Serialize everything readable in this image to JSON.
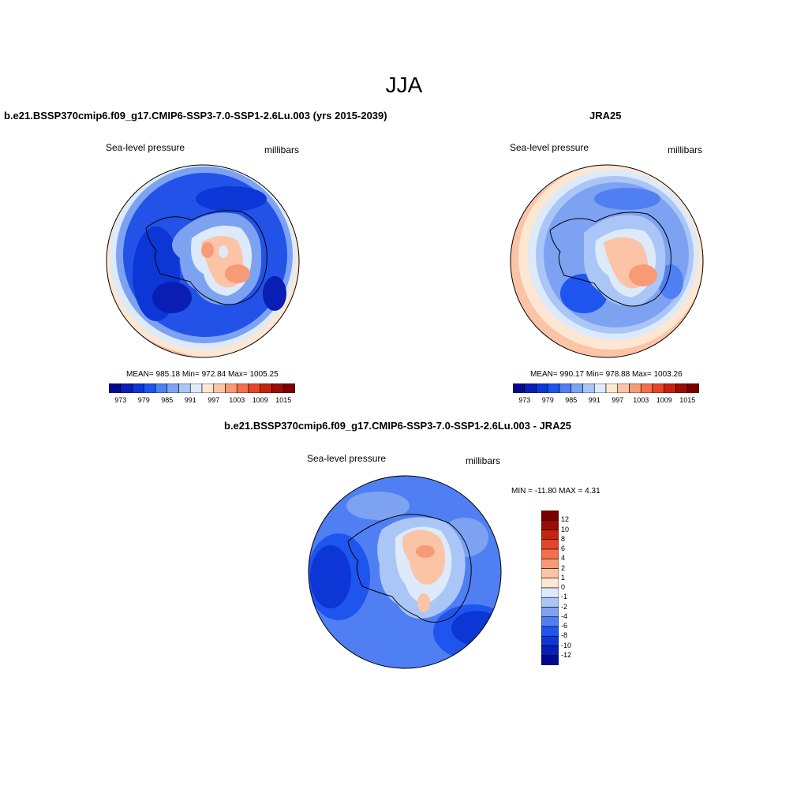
{
  "figure": {
    "title": "JJA",
    "left_panel": {
      "title": "b.e21.BSSP370cmip6.f09_g17.CMIP6-SSP3-7.0-SSP1-2.6Lu.003 (yrs 2015-2039)",
      "variable": "Sea-level pressure",
      "units": "millibars",
      "stats": "MEAN= 985.18  Min= 972.84  Max= 1005.25"
    },
    "right_panel": {
      "title": "JRA25",
      "variable": "Sea-level pressure",
      "units": "millibars",
      "stats": "MEAN= 990.17  Min= 978.88  Max= 1003.26"
    },
    "diff_panel": {
      "title": "b.e21.BSSP370cmip6.f09_g17.CMIP6-SSP3-7.0-SSP1-2.6Lu.003 - JRA25",
      "variable": "Sea-level pressure",
      "units": "millibars",
      "stats": "MIN = -11.80 MAX =   4.31"
    }
  },
  "colorbars": {
    "abs": {
      "colors": [
        "#000a8c",
        "#0a1eb4",
        "#0c37d6",
        "#1f55ef",
        "#4f7ff2",
        "#7da2f2",
        "#aac6f7",
        "#dceafa",
        "#fde6d2",
        "#fbc4a6",
        "#f79a76",
        "#f26e4d",
        "#e7442a",
        "#c42311",
        "#9b0c05",
        "#7a0000"
      ],
      "ticks": [
        "973",
        "979",
        "985",
        "991",
        "997",
        "1003",
        "1009",
        "1015"
      ]
    },
    "diff": {
      "colors": [
        "#000a8c",
        "#0a1eb4",
        "#0c37d6",
        "#1f55ef",
        "#4f7ff2",
        "#7da2f2",
        "#aac6f7",
        "#dceafa",
        "#fde6d2",
        "#fbc4a6",
        "#f79a76",
        "#f26e4d",
        "#e7442a",
        "#c42311",
        "#9b0c05",
        "#7a0000"
      ],
      "ticks": [
        "12",
        "10",
        "8",
        "6",
        "4",
        "2",
        "1",
        "0",
        "-1",
        "-2",
        "-4",
        "-6",
        "-8",
        "-10",
        "-12"
      ]
    }
  },
  "colors": {
    "deep_blue": "#0c2fc4",
    "mid_blue": "#2352e8",
    "light_blue": "#7da2f2",
    "pale_blue": "#dceafa",
    "pale_orange": "#fde6d2",
    "salmon": "#f79a76",
    "orange_red": "#f26e4d"
  }
}
